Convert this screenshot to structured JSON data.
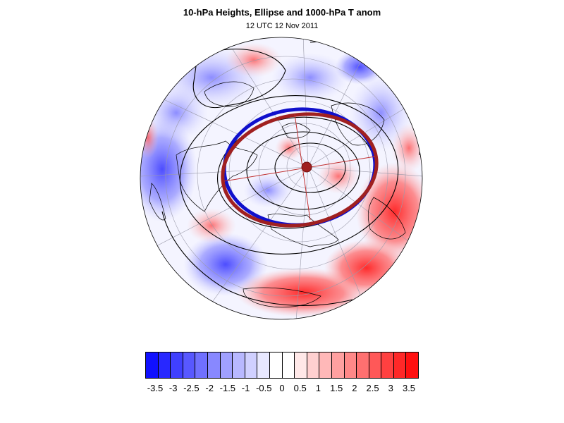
{
  "title": "10-hPa Heights, Ellipse and 1000-hPa T anom",
  "subtitle": "12 UTC 12 Nov 2011",
  "colorbar": {
    "colors": [
      "#1010ff",
      "#2828ff",
      "#4040ff",
      "#5858ff",
      "#7070ff",
      "#8888ff",
      "#a0a0ff",
      "#b8b8ff",
      "#d0d0ff",
      "#e8e8ff",
      "#ffffff",
      "#ffffff",
      "#ffe8e8",
      "#ffd0d0",
      "#ffb8b8",
      "#ffa0a0",
      "#ff8888",
      "#ff7070",
      "#ff5858",
      "#ff4040",
      "#ff2828",
      "#ff1010"
    ],
    "tick_labels": [
      "-3.5",
      "-3",
      "-2.5",
      "-2",
      "-1.5",
      "-1",
      "-0.5",
      "0",
      "0.5",
      "1",
      "1.5",
      "2",
      "2.5",
      "3",
      "3.5"
    ]
  },
  "map": {
    "ocean_background": "#f4f4ff",
    "ellipse_blue_color": "#1010cc",
    "ellipse_red_color": "#a02020",
    "contour_color": "#000000"
  }
}
